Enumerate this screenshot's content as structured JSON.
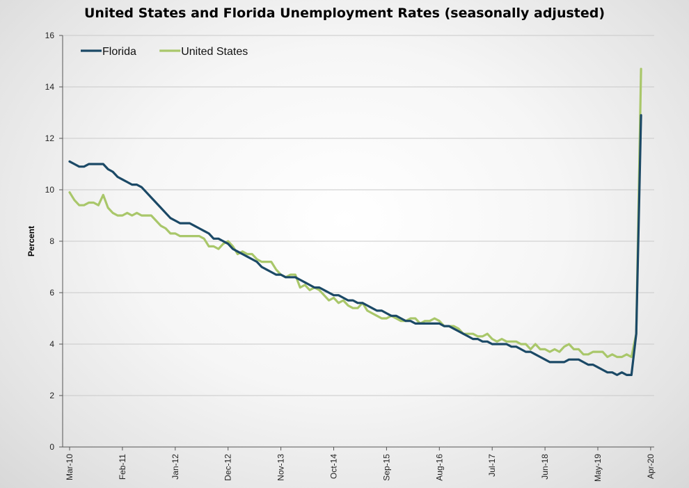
{
  "title": "United States and Florida Unemployment Rates (seasonally adjusted)",
  "chart_data": {
    "type": "line",
    "title": "United States and Florida Unemployment Rates (seasonally adjusted)",
    "ylabel": "Percent",
    "xlabel": "",
    "ylim": [
      0,
      16
    ],
    "yticks": [
      0,
      2,
      4,
      6,
      8,
      10,
      12,
      14,
      16
    ],
    "xtick_labels": [
      "Mar-10",
      "Feb-11",
      "Jan-12",
      "Dec-12",
      "Nov-13",
      "Oct-14",
      "Sep-15",
      "Aug-16",
      "Jul-17",
      "Jun-18",
      "May-19",
      "Apr-20"
    ],
    "grid": "horizontal",
    "legend_position": "top-left",
    "colors": {
      "Florida": "#1b4966",
      "United States": "#a9c76a"
    },
    "start_month": "Mar-10",
    "end_month": "Apr-20",
    "series": [
      {
        "name": "Florida",
        "values": [
          11.1,
          11.0,
          10.9,
          10.9,
          11.0,
          11.0,
          11.0,
          11.0,
          10.8,
          10.7,
          10.5,
          10.4,
          10.3,
          10.2,
          10.2,
          10.1,
          9.9,
          9.7,
          9.5,
          9.3,
          9.1,
          8.9,
          8.8,
          8.7,
          8.7,
          8.7,
          8.6,
          8.5,
          8.4,
          8.3,
          8.1,
          8.1,
          8.0,
          7.9,
          7.7,
          7.6,
          7.5,
          7.4,
          7.3,
          7.2,
          7.0,
          6.9,
          6.8,
          6.7,
          6.7,
          6.6,
          6.6,
          6.6,
          6.5,
          6.4,
          6.3,
          6.2,
          6.2,
          6.1,
          6.0,
          5.9,
          5.9,
          5.8,
          5.7,
          5.7,
          5.6,
          5.6,
          5.5,
          5.4,
          5.3,
          5.3,
          5.2,
          5.1,
          5.1,
          5.0,
          4.9,
          4.9,
          4.8,
          4.8,
          4.8,
          4.8,
          4.8,
          4.8,
          4.7,
          4.7,
          4.6,
          4.5,
          4.4,
          4.3,
          4.2,
          4.2,
          4.1,
          4.1,
          4.0,
          4.0,
          4.0,
          4.0,
          3.9,
          3.9,
          3.8,
          3.7,
          3.7,
          3.6,
          3.5,
          3.4,
          3.3,
          3.3,
          3.3,
          3.3,
          3.4,
          3.4,
          3.4,
          3.3,
          3.2,
          3.2,
          3.1,
          3.0,
          2.9,
          2.9,
          2.8,
          2.9,
          2.8,
          2.8,
          4.4,
          12.9
        ]
      },
      {
        "name": "United States",
        "values": [
          9.9,
          9.6,
          9.4,
          9.4,
          9.5,
          9.5,
          9.4,
          9.8,
          9.3,
          9.1,
          9.0,
          9.0,
          9.1,
          9.0,
          9.1,
          9.0,
          9.0,
          9.0,
          8.8,
          8.6,
          8.5,
          8.3,
          8.3,
          8.2,
          8.2,
          8.2,
          8.2,
          8.2,
          8.1,
          7.8,
          7.8,
          7.7,
          7.9,
          8.0,
          7.8,
          7.5,
          7.6,
          7.5,
          7.5,
          7.3,
          7.2,
          7.2,
          7.2,
          6.9,
          6.7,
          6.6,
          6.7,
          6.7,
          6.2,
          6.3,
          6.1,
          6.2,
          6.1,
          5.9,
          5.7,
          5.8,
          5.6,
          5.7,
          5.5,
          5.4,
          5.4,
          5.6,
          5.3,
          5.2,
          5.1,
          5.0,
          5.0,
          5.1,
          5.0,
          4.9,
          4.9,
          5.0,
          5.0,
          4.8,
          4.9,
          4.9,
          5.0,
          4.9,
          4.7,
          4.7,
          4.7,
          4.6,
          4.4,
          4.4,
          4.4,
          4.3,
          4.3,
          4.4,
          4.2,
          4.1,
          4.2,
          4.1,
          4.1,
          4.1,
          4.0,
          4.0,
          3.8,
          4.0,
          3.8,
          3.8,
          3.7,
          3.8,
          3.7,
          3.9,
          4.0,
          3.8,
          3.8,
          3.6,
          3.6,
          3.7,
          3.7,
          3.7,
          3.5,
          3.6,
          3.5,
          3.5,
          3.6,
          3.5,
          4.4,
          14.7
        ]
      }
    ]
  }
}
